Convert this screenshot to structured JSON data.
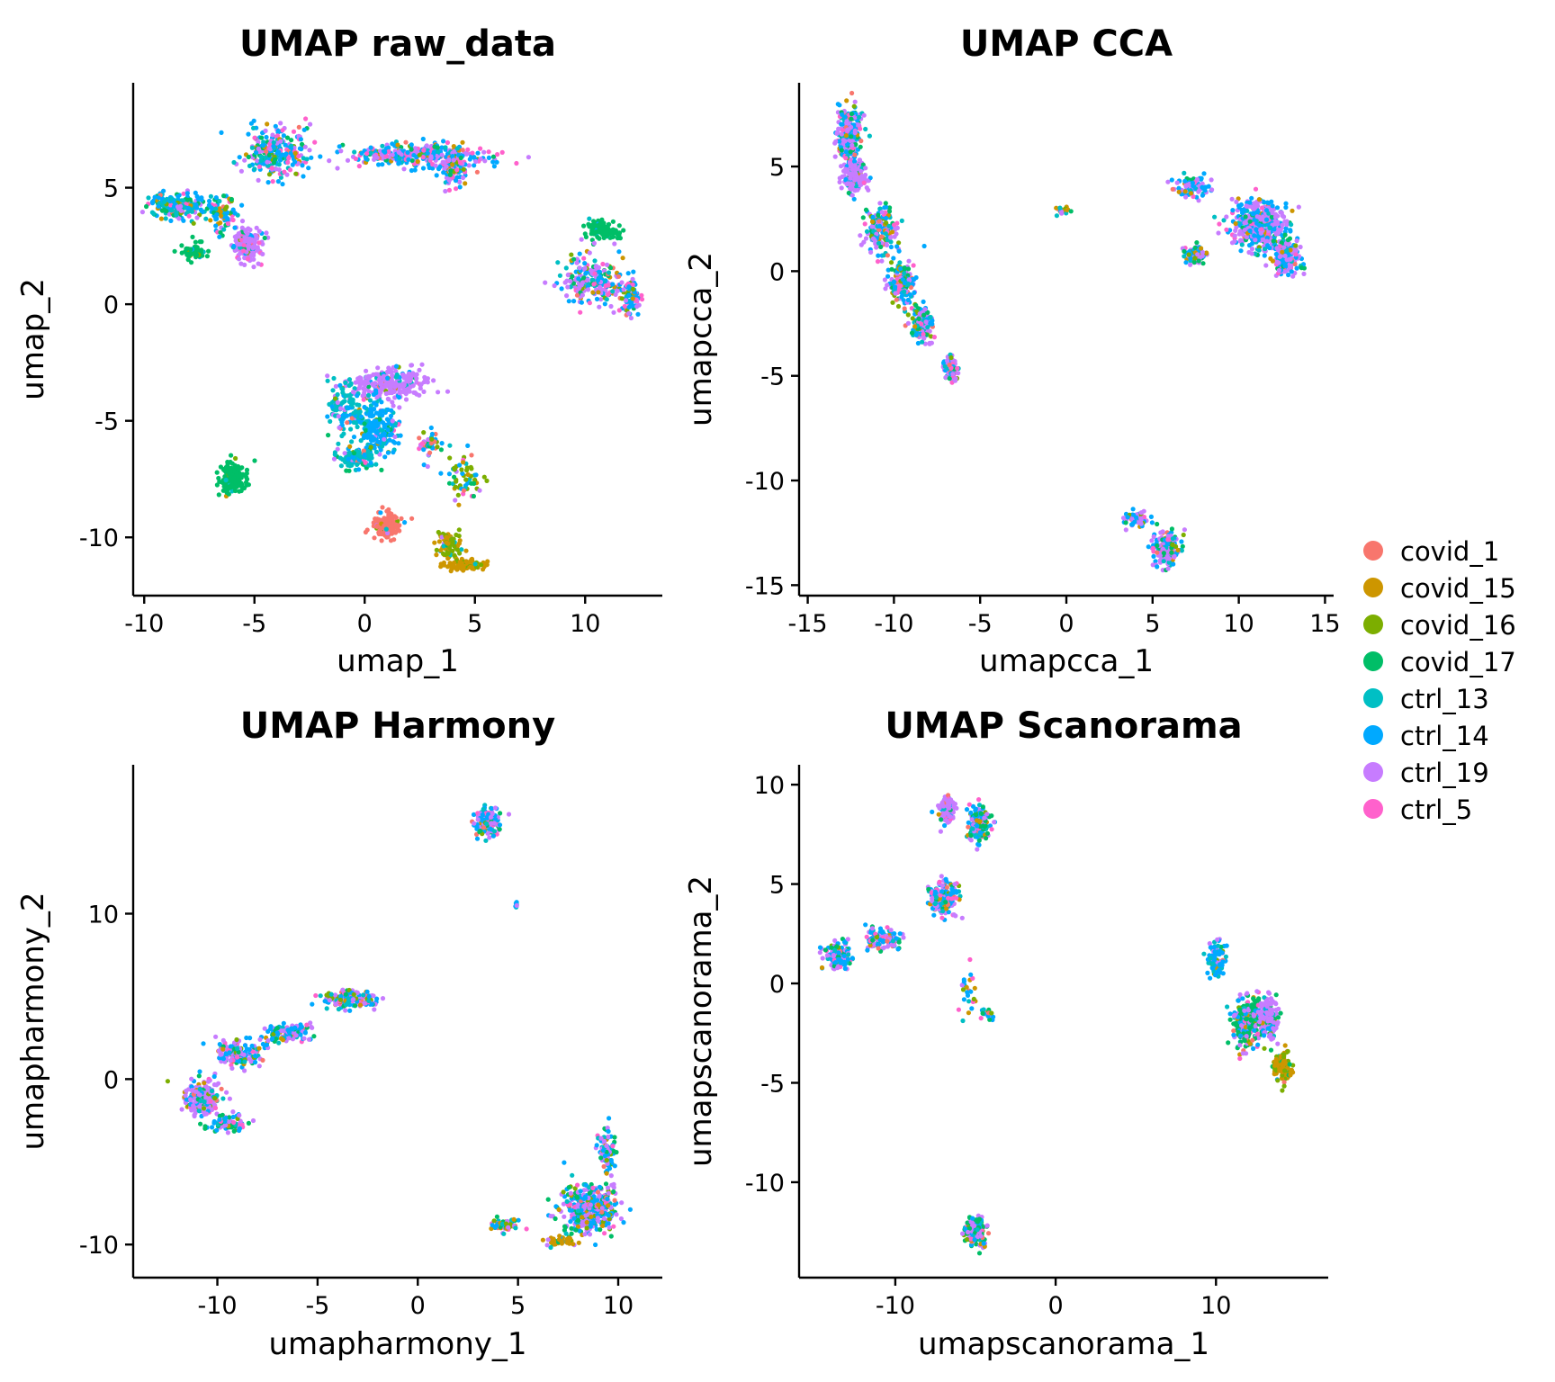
{
  "legend": {
    "items": [
      {
        "label": "covid_1",
        "color": "#F8766D"
      },
      {
        "label": "covid_15",
        "color": "#CD9600"
      },
      {
        "label": "covid_16",
        "color": "#7CAE00"
      },
      {
        "label": "covid_17",
        "color": "#00BE67"
      },
      {
        "label": "ctrl_13",
        "color": "#00BFC4"
      },
      {
        "label": "ctrl_14",
        "color": "#00A9FF"
      },
      {
        "label": "ctrl_19",
        "color": "#C77CFF"
      },
      {
        "label": "ctrl_5",
        "color": "#FF61CC"
      }
    ]
  },
  "chart_data": [
    {
      "type": "scatter",
      "title": "UMAP raw_data",
      "xlabel": "umap_1",
      "ylabel": "umap_2",
      "xlim": [
        -10.5,
        13.5
      ],
      "ylim": [
        -12.5,
        9.5
      ],
      "xticks": [
        -10,
        -5,
        0,
        5,
        10
      ],
      "yticks": [
        -10,
        -5,
        0,
        5
      ],
      "clusters": [
        {
          "cx": -4,
          "cy": 6.5,
          "sx": 1.3,
          "sy": 1.0,
          "n": 260,
          "w": [
            0.03,
            0.06,
            0.04,
            0.14,
            0.1,
            0.28,
            0.2,
            0.15
          ]
        },
        {
          "cx": 2.5,
          "cy": 6.4,
          "sx": 3.0,
          "sy": 0.45,
          "n": 360,
          "w": [
            0.03,
            0.05,
            0.03,
            0.06,
            0.06,
            0.34,
            0.3,
            0.13
          ]
        },
        {
          "cx": 4,
          "cy": 5.8,
          "sx": 0.5,
          "sy": 0.7,
          "n": 100,
          "w": [
            0.02,
            0.04,
            0.03,
            0.08,
            0.06,
            0.35,
            0.32,
            0.1
          ]
        },
        {
          "cx": -8.5,
          "cy": 4.2,
          "sx": 1.2,
          "sy": 0.5,
          "n": 200,
          "w": [
            0.02,
            0.05,
            0.04,
            0.12,
            0.3,
            0.3,
            0.12,
            0.05
          ]
        },
        {
          "cx": -7.8,
          "cy": 2.3,
          "sx": 0.6,
          "sy": 0.3,
          "n": 60,
          "w": [
            0,
            0.05,
            0.05,
            0.8,
            0.05,
            0.05,
            0,
            0
          ]
        },
        {
          "cx": -5.3,
          "cy": 2.6,
          "sx": 0.55,
          "sy": 0.6,
          "n": 200,
          "w": [
            0.01,
            0.01,
            0.01,
            0.02,
            0.02,
            0.08,
            0.8,
            0.05
          ]
        },
        {
          "cx": -6.5,
          "cy": 4.0,
          "sx": 0.8,
          "sy": 0.8,
          "n": 80,
          "w": [
            0.05,
            0.1,
            0.05,
            0.15,
            0.2,
            0.25,
            0.1,
            0.1
          ]
        },
        {
          "cx": 10.8,
          "cy": 3.2,
          "sx": 0.7,
          "sy": 0.4,
          "n": 110,
          "w": [
            0,
            0.02,
            0.03,
            0.9,
            0.02,
            0.03,
            0,
            0
          ]
        },
        {
          "cx": 10.3,
          "cy": 1.0,
          "sx": 1.3,
          "sy": 0.9,
          "n": 220,
          "w": [
            0.04,
            0.05,
            0.04,
            0.12,
            0.1,
            0.25,
            0.3,
            0.1
          ]
        },
        {
          "cx": 12,
          "cy": 0.3,
          "sx": 0.4,
          "sy": 0.7,
          "n": 80,
          "w": [
            0.05,
            0.05,
            0.05,
            0.1,
            0.1,
            0.35,
            0.2,
            0.1
          ]
        },
        {
          "cx": 1.2,
          "cy": -3.4,
          "sx": 1.6,
          "sy": 0.7,
          "n": 240,
          "w": [
            0.01,
            0.01,
            0.01,
            0.02,
            0.03,
            0.06,
            0.84,
            0.02
          ]
        },
        {
          "cx": -0.8,
          "cy": -4.5,
          "sx": 0.8,
          "sy": 1.0,
          "n": 140,
          "w": [
            0.02,
            0.02,
            0.02,
            0.03,
            0.6,
            0.2,
            0.08,
            0.03
          ]
        },
        {
          "cx": 0.6,
          "cy": -5.4,
          "sx": 0.8,
          "sy": 1.0,
          "n": 200,
          "w": [
            0.02,
            0.02,
            0.02,
            0.04,
            0.12,
            0.7,
            0.05,
            0.03
          ]
        },
        {
          "cx": -0.3,
          "cy": -6.6,
          "sx": 0.8,
          "sy": 0.4,
          "n": 120,
          "w": [
            0.02,
            0.03,
            0.02,
            0.05,
            0.55,
            0.25,
            0.05,
            0.03
          ]
        },
        {
          "cx": -6.0,
          "cy": -7.5,
          "sx": 0.55,
          "sy": 0.6,
          "n": 200,
          "w": [
            0,
            0.01,
            0.01,
            0.94,
            0.01,
            0.02,
            0.01,
            0
          ]
        },
        {
          "cx": 1.0,
          "cy": -9.5,
          "sx": 0.55,
          "sy": 0.5,
          "n": 180,
          "w": [
            0.9,
            0.02,
            0.02,
            0.01,
            0.01,
            0.02,
            0.01,
            0.01
          ]
        },
        {
          "cx": 3.8,
          "cy": -10.3,
          "sx": 0.5,
          "sy": 0.5,
          "n": 90,
          "w": [
            0.03,
            0.25,
            0.6,
            0.03,
            0.03,
            0.03,
            0.02,
            0.01
          ]
        },
        {
          "cx": 4.5,
          "cy": -11.2,
          "sx": 0.9,
          "sy": 0.25,
          "n": 90,
          "w": [
            0.02,
            0.8,
            0.12,
            0.02,
            0.01,
            0.01,
            0.01,
            0.01
          ]
        },
        {
          "cx": 4.5,
          "cy": -7.5,
          "sx": 0.7,
          "sy": 1.0,
          "n": 60,
          "w": [
            0.08,
            0.05,
            0.35,
            0.15,
            0.1,
            0.15,
            0.07,
            0.05
          ]
        },
        {
          "cx": 3.0,
          "cy": -6.0,
          "sx": 0.6,
          "sy": 0.8,
          "n": 40,
          "w": [
            0.25,
            0.05,
            0.1,
            0.1,
            0.1,
            0.2,
            0.1,
            0.1
          ]
        }
      ]
    },
    {
      "type": "scatter",
      "title": "UMAP CCA",
      "xlabel": "umapcca_1",
      "ylabel": "umapcca_2",
      "xlim": [
        -15.5,
        15.5
      ],
      "ylim": [
        -15.5,
        9
      ],
      "xticks": [
        -15,
        -10,
        -5,
        0,
        5,
        10,
        15
      ],
      "yticks": [
        -15,
        -10,
        -5,
        0,
        5
      ],
      "clusters": [
        {
          "cx": -12.6,
          "cy": 6.5,
          "sx": 0.6,
          "sy": 1.2,
          "n": 260,
          "w": [
            0.03,
            0.04,
            0.03,
            0.08,
            0.08,
            0.3,
            0.36,
            0.08
          ]
        },
        {
          "cx": -12.3,
          "cy": 4.5,
          "sx": 0.6,
          "sy": 0.7,
          "n": 180,
          "w": [
            0.02,
            0.02,
            0.02,
            0.04,
            0.05,
            0.1,
            0.7,
            0.05
          ]
        },
        {
          "cx": -10.8,
          "cy": 2.0,
          "sx": 0.8,
          "sy": 1.0,
          "n": 180,
          "w": [
            0.05,
            0.05,
            0.04,
            0.12,
            0.1,
            0.3,
            0.26,
            0.08
          ]
        },
        {
          "cx": -9.5,
          "cy": -0.5,
          "sx": 0.7,
          "sy": 1.0,
          "n": 150,
          "w": [
            0.06,
            0.05,
            0.05,
            0.12,
            0.1,
            0.25,
            0.27,
            0.1
          ]
        },
        {
          "cx": -8.3,
          "cy": -2.5,
          "sx": 0.6,
          "sy": 0.8,
          "n": 130,
          "w": [
            0.05,
            0.04,
            0.05,
            0.12,
            0.1,
            0.22,
            0.32,
            0.1
          ]
        },
        {
          "cx": -6.7,
          "cy": -4.6,
          "sx": 0.4,
          "sy": 0.5,
          "n": 90,
          "w": [
            0.03,
            0.03,
            0.03,
            0.08,
            0.08,
            0.2,
            0.45,
            0.1
          ]
        },
        {
          "cx": -0.2,
          "cy": 2.9,
          "sx": 0.4,
          "sy": 0.15,
          "n": 20,
          "w": [
            0.1,
            0.4,
            0.1,
            0.1,
            0.05,
            0.1,
            0.15,
            0
          ]
        },
        {
          "cx": 7.2,
          "cy": 4.0,
          "sx": 0.9,
          "sy": 0.5,
          "n": 90,
          "w": [
            0.02,
            0.03,
            0.02,
            0.06,
            0.08,
            0.45,
            0.3,
            0.04
          ]
        },
        {
          "cx": 11.2,
          "cy": 2.2,
          "sx": 1.5,
          "sy": 1.1,
          "n": 420,
          "w": [
            0.02,
            0.02,
            0.02,
            0.08,
            0.06,
            0.35,
            0.4,
            0.05
          ]
        },
        {
          "cx": 12.7,
          "cy": 0.7,
          "sx": 0.8,
          "sy": 0.8,
          "n": 160,
          "w": [
            0.02,
            0.02,
            0.02,
            0.07,
            0.07,
            0.3,
            0.45,
            0.05
          ]
        },
        {
          "cx": 7.5,
          "cy": 0.8,
          "sx": 0.6,
          "sy": 0.4,
          "n": 70,
          "w": [
            0.05,
            0.15,
            0.1,
            0.1,
            0.05,
            0.15,
            0.35,
            0.05
          ]
        },
        {
          "cx": 4.0,
          "cy": -11.8,
          "sx": 0.6,
          "sy": 0.4,
          "n": 60,
          "w": [
            0.03,
            0.03,
            0.03,
            0.1,
            0.1,
            0.3,
            0.33,
            0.08
          ]
        },
        {
          "cx": 5.8,
          "cy": -13.2,
          "sx": 0.7,
          "sy": 0.8,
          "n": 160,
          "w": [
            0.04,
            0.04,
            0.04,
            0.15,
            0.1,
            0.28,
            0.27,
            0.08
          ]
        }
      ]
    },
    {
      "type": "scatter",
      "title": "UMAP Harmony",
      "xlabel": "umapharmony_1",
      "ylabel": "umapharmony_2",
      "xlim": [
        -14.2,
        12.2
      ],
      "ylim": [
        -12,
        19
      ],
      "xticks": [
        -10,
        -5,
        0,
        5,
        10
      ],
      "yticks": [
        -10,
        0,
        10
      ],
      "clusters": [
        {
          "cx": 3.5,
          "cy": 15.6,
          "sx": 0.6,
          "sy": 0.8,
          "n": 160,
          "w": [
            0.03,
            0.03,
            0.03,
            0.1,
            0.1,
            0.3,
            0.33,
            0.08
          ]
        },
        {
          "cx": 4.9,
          "cy": 10.5,
          "sx": 0.06,
          "sy": 0.2,
          "n": 8,
          "w": [
            0,
            0,
            0,
            0,
            0.2,
            0.4,
            0.4,
            0
          ]
        },
        {
          "cx": -3.5,
          "cy": 4.8,
          "sx": 1.2,
          "sy": 0.5,
          "n": 160,
          "w": [
            0.04,
            0.04,
            0.04,
            0.1,
            0.1,
            0.3,
            0.3,
            0.08
          ]
        },
        {
          "cx": -6.5,
          "cy": 2.8,
          "sx": 1.0,
          "sy": 0.5,
          "n": 130,
          "w": [
            0.04,
            0.04,
            0.04,
            0.1,
            0.1,
            0.3,
            0.3,
            0.08
          ]
        },
        {
          "cx": -9.0,
          "cy": 1.5,
          "sx": 1.0,
          "sy": 0.7,
          "n": 160,
          "w": [
            0.04,
            0.04,
            0.04,
            0.12,
            0.1,
            0.3,
            0.28,
            0.08
          ]
        },
        {
          "cx": -10.8,
          "cy": -1.2,
          "sx": 0.8,
          "sy": 1.0,
          "n": 220,
          "w": [
            0.03,
            0.03,
            0.03,
            0.08,
            0.06,
            0.12,
            0.6,
            0.05
          ]
        },
        {
          "cx": -9.5,
          "cy": -2.7,
          "sx": 0.9,
          "sy": 0.4,
          "n": 90,
          "w": [
            0.04,
            0.04,
            0.04,
            0.2,
            0.1,
            0.25,
            0.25,
            0.08
          ]
        },
        {
          "cx": 4.3,
          "cy": -8.8,
          "sx": 0.8,
          "sy": 0.4,
          "n": 60,
          "w": [
            0.05,
            0.25,
            0.15,
            0.1,
            0.1,
            0.15,
            0.15,
            0.05
          ]
        },
        {
          "cx": 8.5,
          "cy": -7.8,
          "sx": 1.2,
          "sy": 1.3,
          "n": 420,
          "w": [
            0.03,
            0.05,
            0.04,
            0.15,
            0.08,
            0.28,
            0.32,
            0.05
          ]
        },
        {
          "cx": 9.4,
          "cy": -4.5,
          "sx": 0.4,
          "sy": 1.2,
          "n": 90,
          "w": [
            0.03,
            0.03,
            0.03,
            0.1,
            0.08,
            0.35,
            0.33,
            0.05
          ]
        },
        {
          "cx": 7.2,
          "cy": -9.8,
          "sx": 0.7,
          "sy": 0.25,
          "n": 50,
          "w": [
            0.05,
            0.5,
            0.2,
            0.1,
            0.05,
            0.05,
            0.05,
            0
          ]
        }
      ]
    },
    {
      "type": "scatter",
      "title": "UMAP Scanorama",
      "xlabel": "umapscanorama_1",
      "ylabel": "umapscanorama_2",
      "xlim": [
        -16,
        17
      ],
      "ylim": [
        -14.8,
        11
      ],
      "xticks": [
        -10,
        0,
        10
      ],
      "yticks": [
        -10,
        -5,
        0,
        5,
        10
      ],
      "clusters": [
        {
          "cx": -6.8,
          "cy": 8.8,
          "sx": 0.4,
          "sy": 0.6,
          "n": 150,
          "w": [
            0.02,
            0.02,
            0.02,
            0.05,
            0.04,
            0.1,
            0.7,
            0.05
          ]
        },
        {
          "cx": -4.8,
          "cy": 8.0,
          "sx": 0.6,
          "sy": 0.8,
          "n": 160,
          "w": [
            0.03,
            0.03,
            0.03,
            0.2,
            0.15,
            0.35,
            0.15,
            0.06
          ]
        },
        {
          "cx": -7.0,
          "cy": 4.3,
          "sx": 0.8,
          "sy": 0.8,
          "n": 180,
          "w": [
            0.05,
            0.05,
            0.04,
            0.12,
            0.08,
            0.3,
            0.28,
            0.08
          ]
        },
        {
          "cx": -10.8,
          "cy": 2.3,
          "sx": 1.0,
          "sy": 0.5,
          "n": 120,
          "w": [
            0.04,
            0.04,
            0.04,
            0.1,
            0.1,
            0.35,
            0.25,
            0.08
          ]
        },
        {
          "cx": -13.5,
          "cy": 1.4,
          "sx": 0.8,
          "sy": 0.6,
          "n": 130,
          "w": [
            0.03,
            0.03,
            0.03,
            0.1,
            0.08,
            0.3,
            0.35,
            0.08
          ]
        },
        {
          "cx": -5.5,
          "cy": -0.5,
          "sx": 0.6,
          "sy": 1.1,
          "n": 25,
          "w": [
            0.1,
            0.15,
            0.1,
            0.15,
            0.1,
            0.2,
            0.1,
            0.1
          ]
        },
        {
          "cx": -4.3,
          "cy": -1.6,
          "sx": 0.5,
          "sy": 0.3,
          "n": 20,
          "w": [
            0.05,
            0.1,
            0.1,
            0.1,
            0.1,
            0.3,
            0.15,
            0.1
          ]
        },
        {
          "cx": 10.0,
          "cy": 1.2,
          "sx": 0.5,
          "sy": 0.8,
          "n": 100,
          "w": [
            0.02,
            0.02,
            0.02,
            0.04,
            0.15,
            0.5,
            0.22,
            0.03
          ]
        },
        {
          "cx": 12.0,
          "cy": -2.0,
          "sx": 0.9,
          "sy": 1.2,
          "n": 260,
          "w": [
            0.03,
            0.04,
            0.04,
            0.45,
            0.05,
            0.15,
            0.2,
            0.04
          ]
        },
        {
          "cx": 13.2,
          "cy": -1.8,
          "sx": 0.6,
          "sy": 1.0,
          "n": 140,
          "w": [
            0.02,
            0.03,
            0.02,
            0.06,
            0.03,
            0.1,
            0.7,
            0.04
          ]
        },
        {
          "cx": 14.2,
          "cy": -4.2,
          "sx": 0.5,
          "sy": 0.6,
          "n": 130,
          "w": [
            0.05,
            0.45,
            0.35,
            0.1,
            0.02,
            0.02,
            0.01,
            0
          ]
        },
        {
          "cx": -5.0,
          "cy": -12.5,
          "sx": 0.6,
          "sy": 0.7,
          "n": 160,
          "w": [
            0.03,
            0.03,
            0.03,
            0.3,
            0.06,
            0.2,
            0.3,
            0.05
          ]
        }
      ]
    }
  ]
}
